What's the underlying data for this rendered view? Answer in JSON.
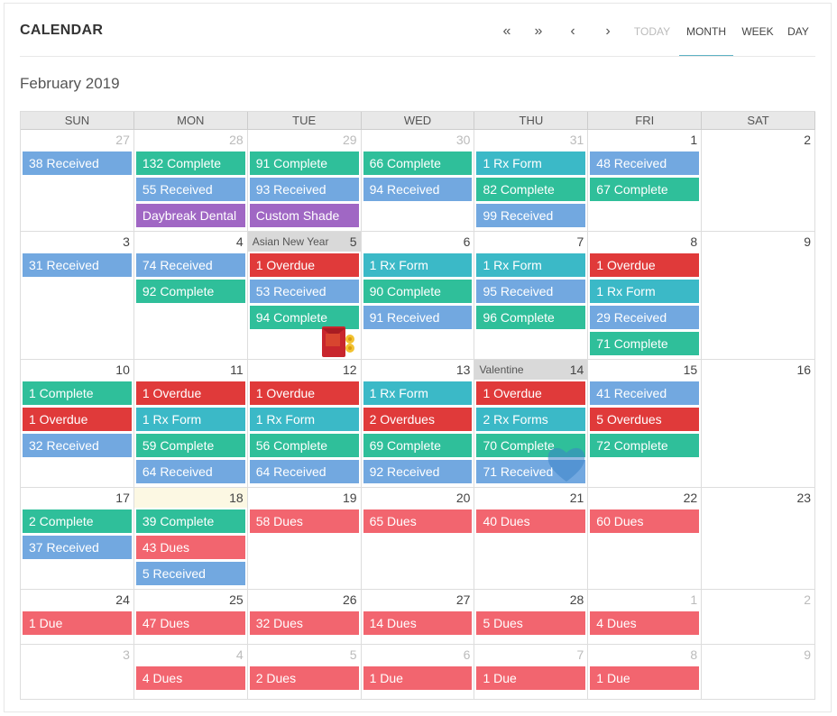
{
  "header": {
    "title": "CALENDAR"
  },
  "toolbar": {
    "prev_year": "«",
    "next_year": "»",
    "prev": "‹",
    "next": "›",
    "today": "TODAY",
    "month": "MONTH",
    "week": "WEEK",
    "day": "DAY",
    "active_view": "MONTH"
  },
  "month_label": "February 2019",
  "colors": {
    "received": "#72a8e0",
    "complete": "#2fbf9a",
    "rx_form": "#3bb9c7",
    "overdue": "#e03a3a",
    "dues": "#f2656f",
    "custom": "#a067c4",
    "holiday": "#d9d9d9",
    "today": "#fcf8e3",
    "accent": "#5fb3c4"
  },
  "weekdays": [
    "SUN",
    "MON",
    "TUE",
    "WED",
    "THU",
    "FRI",
    "SAT"
  ],
  "weeks": [
    {
      "days": [
        {
          "num": "27",
          "other": true,
          "events": [
            {
              "label": "38 Received",
              "color": "blue"
            }
          ]
        },
        {
          "num": "28",
          "other": true,
          "events": [
            {
              "label": "132 Complete",
              "color": "green"
            },
            {
              "label": "55 Received",
              "color": "blue"
            },
            {
              "label": "Daybreak Dental",
              "color": "purple"
            }
          ]
        },
        {
          "num": "29",
          "other": true,
          "events": [
            {
              "label": "91 Complete",
              "color": "green"
            },
            {
              "label": "93 Received",
              "color": "blue"
            },
            {
              "label": "Custom Shade",
              "color": "purple"
            }
          ]
        },
        {
          "num": "30",
          "other": true,
          "events": [
            {
              "label": "66 Complete",
              "color": "green"
            },
            {
              "label": "94 Received",
              "color": "blue"
            }
          ]
        },
        {
          "num": "31",
          "other": true,
          "events": [
            {
              "label": "1 Rx Form",
              "color": "teal"
            },
            {
              "label": "82 Complete",
              "color": "green"
            },
            {
              "label": "99 Received",
              "color": "blue"
            }
          ]
        },
        {
          "num": "1",
          "events": [
            {
              "label": "48 Received",
              "color": "blue"
            },
            {
              "label": "67 Complete",
              "color": "green"
            }
          ]
        },
        {
          "num": "2",
          "events": []
        }
      ]
    },
    {
      "days": [
        {
          "num": "3",
          "events": [
            {
              "label": "31 Received",
              "color": "blue"
            }
          ]
        },
        {
          "num": "4",
          "events": [
            {
              "label": "74 Received",
              "color": "blue"
            },
            {
              "label": "92 Complete",
              "color": "green"
            }
          ]
        },
        {
          "num": "5",
          "holiday": "Asian New Year",
          "events": [
            {
              "label": "1 Overdue",
              "color": "red"
            },
            {
              "label": "53 Received",
              "color": "blue"
            },
            {
              "label": "94 Complete",
              "color": "green"
            }
          ]
        },
        {
          "num": "6",
          "events": [
            {
              "label": "1 Rx Form",
              "color": "teal"
            },
            {
              "label": "90 Complete",
              "color": "green"
            },
            {
              "label": "91 Received",
              "color": "blue"
            }
          ]
        },
        {
          "num": "7",
          "events": [
            {
              "label": "1 Rx Form",
              "color": "teal"
            },
            {
              "label": "95 Received",
              "color": "blue"
            },
            {
              "label": "96 Complete",
              "color": "green"
            }
          ]
        },
        {
          "num": "8",
          "events": [
            {
              "label": "1 Overdue",
              "color": "red"
            },
            {
              "label": "1 Rx Form",
              "color": "teal"
            },
            {
              "label": "29 Received",
              "color": "blue"
            },
            {
              "label": "71 Complete",
              "color": "green"
            }
          ]
        },
        {
          "num": "9",
          "events": []
        }
      ]
    },
    {
      "days": [
        {
          "num": "10",
          "events": [
            {
              "label": "1 Complete",
              "color": "green"
            },
            {
              "label": "1 Overdue",
              "color": "red"
            },
            {
              "label": "32 Received",
              "color": "blue"
            }
          ]
        },
        {
          "num": "11",
          "events": [
            {
              "label": "1 Overdue",
              "color": "red"
            },
            {
              "label": "1 Rx Form",
              "color": "teal"
            },
            {
              "label": "59 Complete",
              "color": "green"
            },
            {
              "label": "64 Received",
              "color": "blue"
            }
          ]
        },
        {
          "num": "12",
          "events": [
            {
              "label": "1 Overdue",
              "color": "red"
            },
            {
              "label": "1 Rx Form",
              "color": "teal"
            },
            {
              "label": "56 Complete",
              "color": "green"
            },
            {
              "label": "64 Received",
              "color": "blue"
            }
          ]
        },
        {
          "num": "13",
          "events": [
            {
              "label": "1 Rx Form",
              "color": "teal"
            },
            {
              "label": "2 Overdues",
              "color": "red"
            },
            {
              "label": "69 Complete",
              "color": "green"
            },
            {
              "label": "92 Received",
              "color": "blue"
            }
          ]
        },
        {
          "num": "14",
          "holiday": "Valentine",
          "events": [
            {
              "label": "1 Overdue",
              "color": "red"
            },
            {
              "label": "2 Rx Forms",
              "color": "teal"
            },
            {
              "label": "70 Complete",
              "color": "green"
            },
            {
              "label": "71 Received",
              "color": "blue"
            }
          ]
        },
        {
          "num": "15",
          "events": [
            {
              "label": "41 Received",
              "color": "blue"
            },
            {
              "label": "5 Overdues",
              "color": "red"
            },
            {
              "label": "72 Complete",
              "color": "green"
            }
          ]
        },
        {
          "num": "16",
          "events": []
        }
      ]
    },
    {
      "days": [
        {
          "num": "17",
          "events": [
            {
              "label": "2 Complete",
              "color": "green"
            },
            {
              "label": "37 Received",
              "color": "blue"
            }
          ]
        },
        {
          "num": "18",
          "today": true,
          "events": [
            {
              "label": "39 Complete",
              "color": "green"
            },
            {
              "label": "43 Dues",
              "color": "pink"
            },
            {
              "label": "5 Received",
              "color": "blue"
            }
          ]
        },
        {
          "num": "19",
          "events": [
            {
              "label": "58 Dues",
              "color": "pink"
            }
          ]
        },
        {
          "num": "20",
          "events": [
            {
              "label": "65 Dues",
              "color": "pink"
            }
          ]
        },
        {
          "num": "21",
          "events": [
            {
              "label": "40 Dues",
              "color": "pink"
            }
          ]
        },
        {
          "num": "22",
          "events": [
            {
              "label": "60 Dues",
              "color": "pink"
            }
          ]
        },
        {
          "num": "23",
          "events": []
        }
      ]
    },
    {
      "days": [
        {
          "num": "24",
          "events": [
            {
              "label": "1 Due",
              "color": "pink"
            }
          ]
        },
        {
          "num": "25",
          "events": [
            {
              "label": "47 Dues",
              "color": "pink"
            }
          ]
        },
        {
          "num": "26",
          "events": [
            {
              "label": "32 Dues",
              "color": "pink"
            }
          ]
        },
        {
          "num": "27",
          "events": [
            {
              "label": "14 Dues",
              "color": "pink"
            }
          ]
        },
        {
          "num": "28",
          "events": [
            {
              "label": "5 Dues",
              "color": "pink"
            }
          ]
        },
        {
          "num": "1",
          "other": true,
          "events": [
            {
              "label": "4 Dues",
              "color": "pink"
            }
          ]
        },
        {
          "num": "2",
          "other": true,
          "events": []
        }
      ]
    },
    {
      "days": [
        {
          "num": "3",
          "other": true,
          "events": []
        },
        {
          "num": "4",
          "other": true,
          "events": [
            {
              "label": "4 Dues",
              "color": "pink"
            }
          ]
        },
        {
          "num": "5",
          "other": true,
          "events": [
            {
              "label": "2 Dues",
              "color": "pink"
            }
          ]
        },
        {
          "num": "6",
          "other": true,
          "events": [
            {
              "label": "1 Due",
              "color": "pink"
            }
          ]
        },
        {
          "num": "7",
          "other": true,
          "events": [
            {
              "label": "1 Due",
              "color": "pink"
            }
          ]
        },
        {
          "num": "8",
          "other": true,
          "events": [
            {
              "label": "1 Due",
              "color": "pink"
            }
          ]
        },
        {
          "num": "9",
          "other": true,
          "events": []
        }
      ]
    }
  ]
}
